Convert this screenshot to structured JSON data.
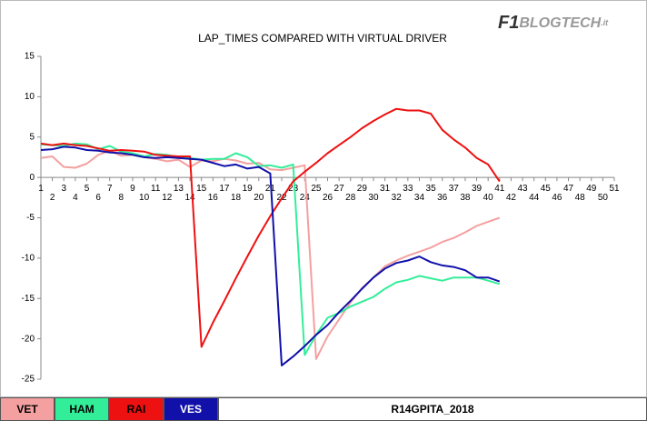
{
  "logo": [
    "F1",
    "BLOGTECH",
    ".it"
  ],
  "chart_data": {
    "type": "line",
    "title": "LAP_TIMES COMPARED WITH VIRTUAL DRIVER",
    "caption": "R14GPITA_2018",
    "categories": [
      1,
      2,
      3,
      4,
      5,
      6,
      7,
      8,
      9,
      10,
      11,
      12,
      13,
      14,
      15,
      16,
      17,
      18,
      19,
      20,
      21,
      22,
      23,
      24,
      25,
      26,
      27,
      28,
      29,
      30,
      31,
      32,
      33,
      34,
      35,
      36,
      37,
      38,
      39,
      40,
      41,
      42,
      43,
      44,
      45,
      46,
      47,
      48,
      49,
      50,
      51
    ],
    "ylim": [
      -25,
      15
    ],
    "yticks": [
      -25,
      -20,
      -15,
      -10,
      -5,
      0,
      5,
      10,
      15
    ],
    "series": [
      {
        "name": "VET",
        "color": "#f4a0a0",
        "values": [
          2.4,
          2.6,
          1.3,
          1.2,
          1.7,
          2.8,
          3.3,
          2.7,
          2.8,
          2.5,
          2.3,
          2,
          2.2,
          1.3,
          2.1,
          2,
          2.3,
          2.1,
          1.7,
          1.8,
          1,
          0.9,
          1.2,
          1.5,
          -22.5,
          -19.7,
          -17.6,
          -15.5,
          -13.7,
          -12.4,
          -11,
          -10.3,
          -9.7,
          -9.2,
          -8.7,
          -8,
          -7.5,
          -6.8,
          -6,
          -5.5,
          -5,
          null,
          null,
          null,
          null,
          null,
          null,
          null,
          null,
          null,
          null
        ]
      },
      {
        "name": "HAM",
        "color": "#33ee99",
        "values": [
          4.1,
          4,
          3.9,
          4.2,
          4.1,
          3.5,
          3.9,
          3.2,
          3,
          2.6,
          2.9,
          2.8,
          2.5,
          2.4,
          2.2,
          2.3,
          2.3,
          3,
          2.5,
          1.4,
          1.5,
          1.2,
          1.6,
          -22,
          -19.5,
          -17.4,
          -16.8,
          -16,
          -15.4,
          -14.8,
          -13.8,
          -13,
          -12.7,
          -12.2,
          -12.5,
          -12.8,
          -12.4,
          -12.4,
          -12.4,
          -12.8,
          -13.2,
          null,
          null,
          null,
          null,
          null,
          null,
          null,
          null,
          null,
          null
        ]
      },
      {
        "name": "RAI",
        "color": "#ee1111",
        "values": [
          4.2,
          4,
          4.2,
          4,
          3.9,
          3.6,
          3.3,
          3.4,
          3.3,
          3.2,
          2.8,
          2.7,
          2.6,
          2.6,
          -21,
          -18,
          -15.3,
          -12.5,
          -9.8,
          -7.2,
          -4.8,
          -2.6,
          -0.5,
          0.7,
          1.8,
          3,
          4,
          5,
          6.1,
          7,
          7.8,
          8.5,
          8.3,
          8.3,
          7.9,
          5.9,
          4.7,
          3.7,
          2.4,
          1.6,
          -0.5,
          null,
          null,
          null,
          null,
          null,
          null,
          null,
          null,
          null,
          null
        ]
      },
      {
        "name": "VES",
        "color": "#1111aa",
        "values": [
          3.4,
          3.5,
          3.8,
          3.7,
          3.4,
          3.3,
          3.1,
          3,
          2.8,
          2.5,
          2.4,
          2.5,
          2.4,
          2.3,
          2.2,
          1.8,
          1.4,
          1.6,
          1.1,
          1.3,
          0.5,
          -23.3,
          -22.2,
          -20.9,
          -19.5,
          -18.3,
          -16.7,
          -15.3,
          -13.8,
          -12.4,
          -11.3,
          -10.6,
          -10.3,
          -9.8,
          -10.5,
          -10.9,
          -11.1,
          -11.5,
          -12.4,
          -12.4,
          -12.9,
          null,
          null,
          null,
          null,
          null,
          null,
          null,
          null,
          null,
          null
        ]
      }
    ]
  }
}
